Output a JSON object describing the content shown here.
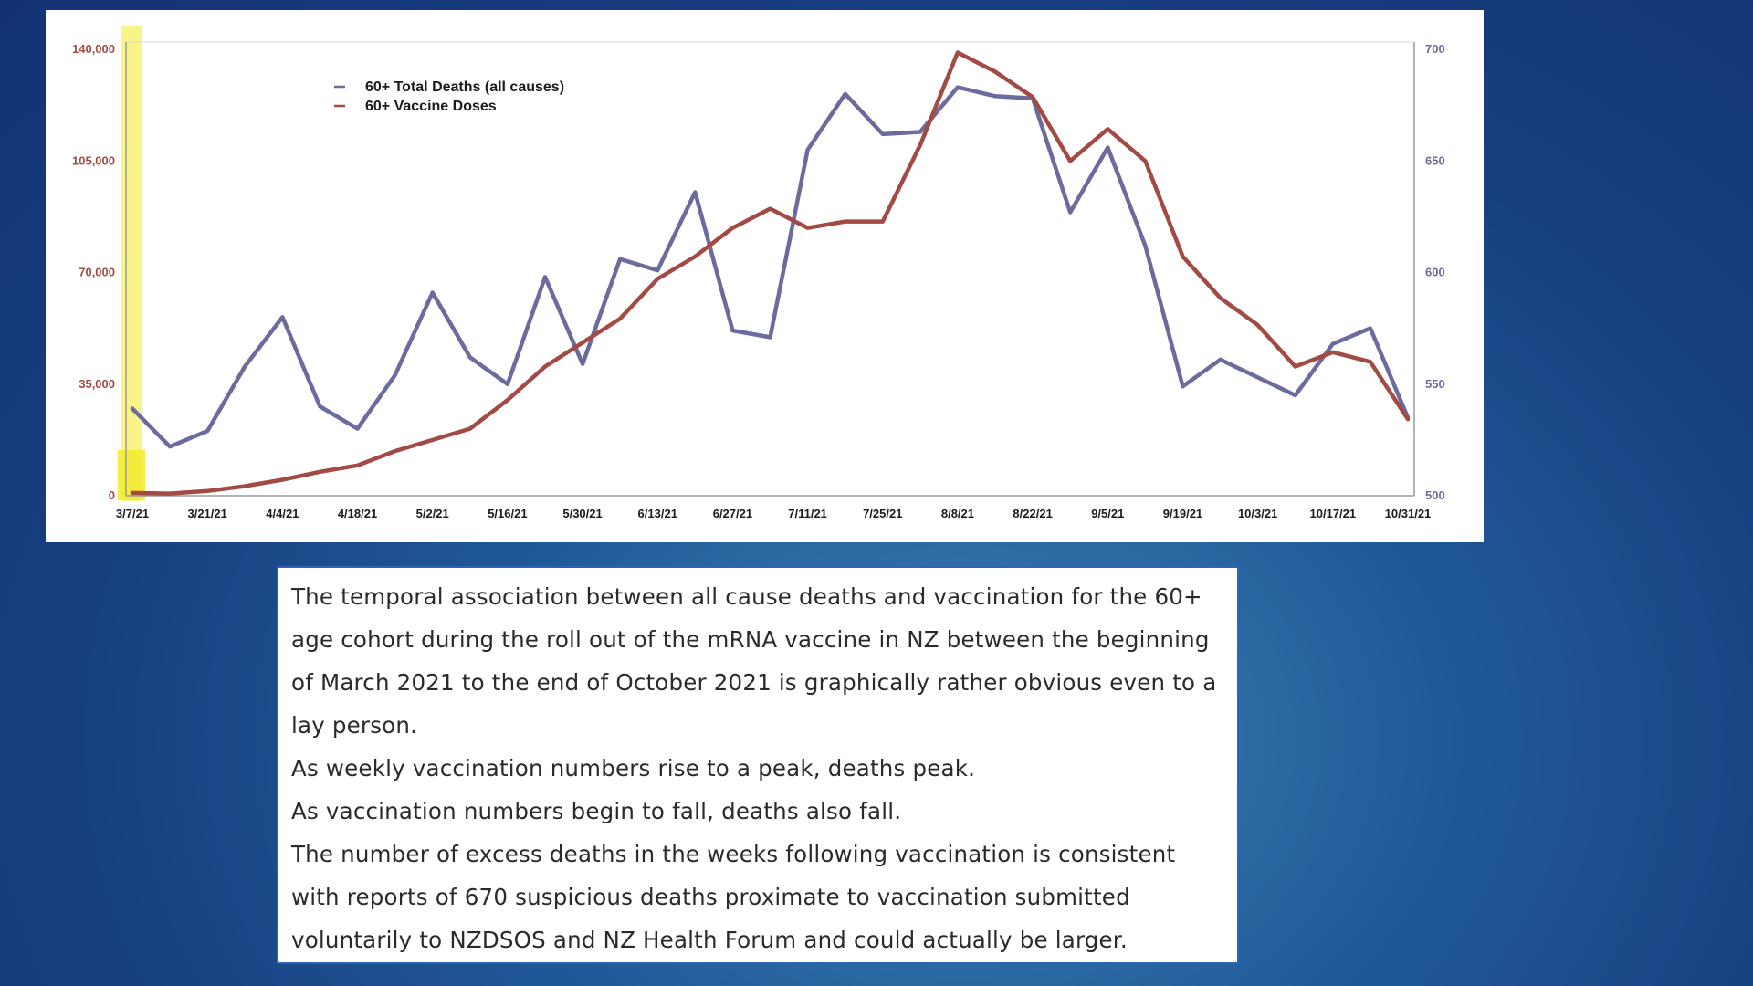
{
  "colors": {
    "deaths_line": "#6b6b9e",
    "doses_line": "#a24b45",
    "left_axis_text": "#a24b45",
    "right_axis_text": "#6b6b9e",
    "highlight": "#f7f060"
  },
  "chart_data": {
    "type": "line",
    "x": [
      "3/7/21",
      "3/14/21",
      "3/21/21",
      "3/28/21",
      "4/4/21",
      "4/11/21",
      "4/18/21",
      "4/25/21",
      "5/2/21",
      "5/9/21",
      "5/16/21",
      "5/23/21",
      "5/30/21",
      "6/6/21",
      "6/13/21",
      "6/20/21",
      "6/27/21",
      "7/4/21",
      "7/11/21",
      "7/18/21",
      "7/25/21",
      "8/1/21",
      "8/8/21",
      "8/15/21",
      "8/22/21",
      "8/29/21",
      "9/5/21",
      "9/12/21",
      "9/19/21",
      "9/26/21",
      "10/3/21",
      "10/10/21",
      "10/17/21",
      "10/24/21",
      "10/31/21"
    ],
    "x_tick_labels": [
      "3/7/21",
      "3/21/21",
      "4/4/21",
      "4/18/21",
      "5/2/21",
      "5/16/21",
      "5/30/21",
      "6/13/21",
      "6/27/21",
      "7/11/21",
      "7/25/21",
      "8/8/21",
      "8/22/21",
      "9/5/21",
      "9/19/21",
      "10/3/21",
      "10/17/21",
      "10/31/21"
    ],
    "y_left_ticks": [
      "140,000",
      "105,000",
      "70,000",
      "35,000",
      "0"
    ],
    "y_right_ticks": [
      "700",
      "650",
      "600",
      "550",
      "500"
    ],
    "ylim_left": [
      0,
      140000
    ],
    "ylim_right": [
      500,
      700
    ],
    "grid": false,
    "legend_position": "top-left",
    "series": [
      {
        "name": "60+ Total Deaths (all causes)",
        "axis": "right",
        "values": [
          539,
          522,
          529,
          558,
          580,
          540,
          530,
          554,
          591,
          562,
          550,
          598,
          559,
          606,
          601,
          636,
          574,
          571,
          655,
          680,
          662,
          663,
          683,
          679,
          678,
          627,
          656,
          612,
          549,
          561,
          553,
          545,
          568,
          575,
          535
        ]
      },
      {
        "name": "60+ Vaccine Doses",
        "axis": "left",
        "values": [
          900,
          700,
          1500,
          3000,
          5000,
          7500,
          9500,
          14000,
          17500,
          21000,
          30000,
          40500,
          48000,
          55500,
          68000,
          75000,
          84000,
          90000,
          84000,
          86000,
          86000,
          110000,
          139000,
          133000,
          125000,
          105000,
          115000,
          105000,
          75000,
          62000,
          53500,
          40500,
          45000,
          42000,
          24000
        ]
      }
    ]
  },
  "description": {
    "paragraphs": [
      "The temporal association between all cause deaths and vaccination for the 60+ age cohort during the roll out of the mRNA vaccine in NZ between the beginning of March 2021 to the end of October 2021 is graphically rather obvious even to a lay person.",
      "As weekly vaccination numbers rise to a peak, deaths peak.",
      "As vaccination numbers begin to fall, deaths also fall.",
      "The number of excess deaths in the weeks following vaccination is consistent with reports of 670 suspicious deaths proximate to vaccination submitted voluntarily to NZDSOS and NZ Health Forum and could actually be larger."
    ]
  }
}
